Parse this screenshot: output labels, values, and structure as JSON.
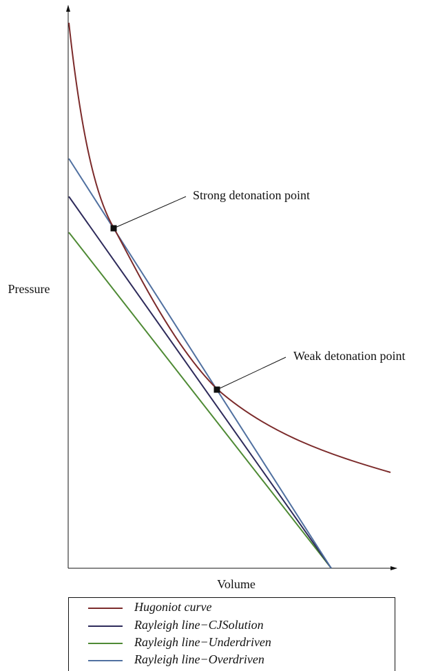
{
  "axes": {
    "y_label": "Pressure",
    "x_label": "Volume"
  },
  "annotations": {
    "strong": "Strong detonation point",
    "weak": "Weak detonation point"
  },
  "legend": {
    "items": [
      "Hugoniot curve",
      "Rayleigh line−CJSolution",
      "Rayleigh line−Underdriven",
      "Rayleigh line−Overdriven"
    ]
  }
}
